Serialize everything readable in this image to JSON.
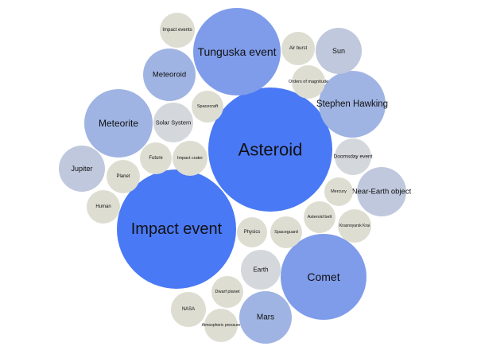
{
  "colors": {
    "level_1": "#4a79f5",
    "level_2": "#7f9cea",
    "level_3": "#9fb4e3",
    "level_4": "#bfc8dc",
    "level_5": "#d4d8dd",
    "level_6": "#deddd2",
    "label": "#111111"
  },
  "bubbles": [
    {
      "id": "asteroid",
      "label": "Asteroid",
      "level": 1
    },
    {
      "id": "impact-event",
      "label": "Impact event",
      "level": 1
    },
    {
      "id": "tunguska-event",
      "label": "Tunguska event",
      "level": 2
    },
    {
      "id": "comet",
      "label": "Comet",
      "level": 2
    },
    {
      "id": "stephen-hawking",
      "label": "Stephen Hawking",
      "level": 3
    },
    {
      "id": "meteorite",
      "label": "Meteorite",
      "level": 3
    },
    {
      "id": "meteoroid",
      "label": "Meteoroid",
      "level": 3
    },
    {
      "id": "mars",
      "label": "Mars",
      "level": 3
    },
    {
      "id": "near-earth-object",
      "label": "Near-Earth object",
      "level": 4
    },
    {
      "id": "jupiter",
      "label": "Jupiter",
      "level": 4
    },
    {
      "id": "sun",
      "label": "Sun",
      "level": 4
    },
    {
      "id": "solar-system",
      "label": "Solar System",
      "level": 5
    },
    {
      "id": "earth",
      "label": "Earth",
      "level": 5
    },
    {
      "id": "doomsday-event",
      "label": "Doomsday event",
      "level": 5
    },
    {
      "id": "impact-events",
      "label": "Impact events",
      "level": 6
    },
    {
      "id": "air-burst",
      "label": "Air burst",
      "level": 6
    },
    {
      "id": "orders-of-magnitude",
      "label": "Orders of magnitude",
      "level": 6
    },
    {
      "id": "spacecraft",
      "label": "Spacecraft",
      "level": 6
    },
    {
      "id": "future",
      "label": "Future",
      "level": 6
    },
    {
      "id": "impact-crater",
      "label": "Impact crater",
      "level": 6
    },
    {
      "id": "planet",
      "label": "Planet",
      "level": 6
    },
    {
      "id": "human",
      "label": "Human",
      "level": 6
    },
    {
      "id": "mercury",
      "label": "Mercury",
      "level": 6
    },
    {
      "id": "asteroid-belt",
      "label": "Asteroid belt",
      "level": 6
    },
    {
      "id": "krasnoyarsk-krai",
      "label": "Krasnoyarsk Krai",
      "level": 6
    },
    {
      "id": "physics",
      "label": "Physics",
      "level": 6
    },
    {
      "id": "spaceguard",
      "label": "Spaceguard",
      "level": 6
    },
    {
      "id": "dwarf-planet",
      "label": "Dwarf planet",
      "level": 6
    },
    {
      "id": "nasa",
      "label": "NASA",
      "level": 6
    },
    {
      "id": "atmospheric-pressure",
      "label": "Atmospheric pressure",
      "level": 6
    }
  ]
}
